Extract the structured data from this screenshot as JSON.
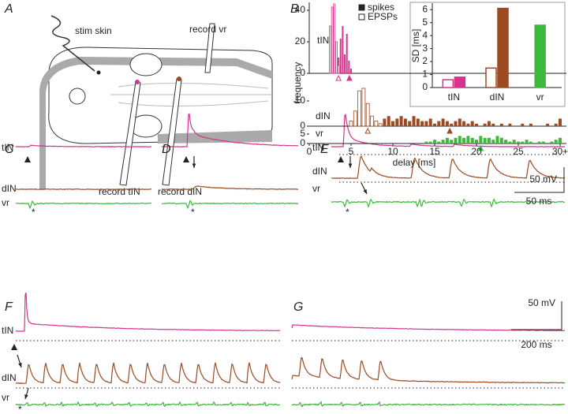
{
  "panels": {
    "letters": [
      "A",
      "B",
      "C",
      "D",
      "E",
      "F",
      "G"
    ],
    "diagram": {
      "stim_skin": "stim skin",
      "record_vr": "record vr",
      "record_tIN": "record tIN",
      "record_dIN": "record dIN"
    },
    "traces": {
      "tIN": "tIN",
      "dIN": "dIN",
      "vr": "vr",
      "star": "*"
    },
    "scale_bars": {
      "E_voltage": "50 mV",
      "E_time": "50 ms",
      "G_voltage": "50 mV",
      "G_time": "200 ms"
    }
  },
  "chart_data": [
    {
      "type": "bar",
      "label": "tIN",
      "color": "#d6338a",
      "x": [
        2.5,
        2.75,
        3,
        3.25,
        3.5,
        3.75,
        4,
        4.25,
        4.5,
        4.75,
        5
      ],
      "series": [
        {
          "name": "spikes",
          "filled": true,
          "color": "#d6338a",
          "values": [
            0,
            0,
            0,
            5,
            10,
            22,
            30,
            12,
            25,
            8,
            3
          ]
        },
        {
          "name": "EPSPs",
          "filled": false,
          "color": "#d6338a",
          "values": [
            30,
            42,
            44,
            20,
            5,
            0,
            0,
            0,
            0,
            0,
            0
          ]
        }
      ],
      "means": {
        "spikes": 4.8,
        "EPSPs": 3.5
      },
      "ylim": [
        0,
        45
      ],
      "yticks": [
        0,
        20,
        40
      ],
      "legend": "top-right"
    },
    {
      "type": "bar",
      "label": "dIN",
      "color": "#9b4a22",
      "ylabel": "frequency",
      "x": [
        5,
        5.5,
        6,
        6.5,
        7,
        7.5,
        8,
        8.5,
        9,
        9.5,
        10,
        10.5,
        11,
        11.5,
        12,
        12.5,
        13,
        13.5,
        14,
        14.5,
        15,
        15.5,
        16,
        16.5,
        17,
        17.5,
        18,
        18.5,
        19,
        19.5,
        20,
        20.5,
        21,
        21.5,
        22,
        22.5,
        23,
        23.5,
        24,
        24.5,
        25,
        25.5,
        26,
        26.5,
        27,
        27.5,
        28,
        28.5,
        29,
        29.5,
        30
      ],
      "series": [
        {
          "name": "spikes",
          "filled": true,
          "color": "#9b4a22",
          "values": [
            0,
            0,
            0,
            0,
            1,
            0,
            2,
            1,
            3,
            4,
            2,
            3,
            4,
            3,
            2,
            4,
            3,
            2,
            2,
            3,
            1,
            2,
            3,
            2,
            1,
            2,
            3,
            2,
            1,
            2,
            1,
            0,
            1,
            2,
            1,
            0,
            1,
            0,
            1,
            0,
            0,
            1,
            0,
            1,
            0,
            0,
            0,
            1,
            0,
            1,
            3
          ]
        },
        {
          "name": "EPSPs",
          "filled": false,
          "color": "#9b4a22",
          "values": [
            2,
            6,
            14,
            15,
            9,
            4,
            2,
            1,
            0,
            0,
            0,
            0,
            0,
            0,
            0,
            0,
            0,
            0,
            0,
            0,
            0,
            0,
            0,
            0,
            0,
            0,
            0,
            0,
            0,
            0,
            0,
            0,
            0,
            0,
            0,
            0,
            0,
            0,
            0,
            0,
            0,
            0,
            0,
            0,
            0,
            0,
            0,
            0,
            0,
            0,
            0
          ]
        }
      ],
      "means": {
        "spikes": 16.8,
        "EPSPs": 7
      },
      "ylim": [
        0,
        15
      ],
      "yticks": [
        0,
        10
      ]
    },
    {
      "type": "bar",
      "label": "vr",
      "color": "#3cb83c",
      "xlabel": "delay [ms]",
      "x": [
        5,
        5.5,
        6,
        6.5,
        7,
        7.5,
        8,
        8.5,
        9,
        9.5,
        10,
        10.5,
        11,
        11.5,
        12,
        12.5,
        13,
        13.5,
        14,
        14.5,
        15,
        15.5,
        16,
        16.5,
        17,
        17.5,
        18,
        18.5,
        19,
        19.5,
        20,
        20.5,
        21,
        21.5,
        22,
        22.5,
        23,
        23.5,
        24,
        24.5,
        25,
        25.5,
        26,
        26.5,
        27,
        27.5,
        28,
        28.5,
        29,
        29.5,
        30
      ],
      "series": [
        {
          "name": "spikes",
          "filled": true,
          "color": "#3cb83c",
          "values": [
            0,
            0,
            0,
            0,
            0,
            0,
            0,
            0,
            0,
            0,
            0,
            0,
            0,
            0,
            0,
            0,
            0,
            0,
            1,
            1,
            2,
            1,
            2,
            3,
            2,
            3,
            4,
            3,
            4,
            3,
            2,
            4,
            3,
            3,
            2,
            4,
            3,
            2,
            1,
            2,
            1,
            1,
            2,
            1,
            0,
            1,
            1,
            0,
            1,
            2,
            3
          ]
        }
      ],
      "means": {
        "spikes": 20.5
      },
      "ylim": [
        0,
        5
      ],
      "yticks": [
        0,
        5
      ],
      "xlim": [
        0,
        30.5
      ],
      "xticks": [
        0,
        5,
        10,
        15,
        20,
        25,
        {
          "value": 30,
          "label": "30+"
        }
      ]
    },
    {
      "type": "sdbar",
      "ylabel": "SD [ms]",
      "categories": [
        "tIN",
        "dIN",
        "vr"
      ],
      "colors": [
        "#d6338a",
        "#9b4a22",
        "#3cb83c"
      ],
      "series": [
        {
          "name": "EPSPs",
          "filled": false,
          "values": [
            0.6,
            1.5,
            null
          ]
        },
        {
          "name": "spikes",
          "filled": true,
          "values": [
            0.8,
            6.1,
            4.8
          ]
        }
      ],
      "ylim": [
        0,
        6.5
      ],
      "yticks": [
        0,
        1,
        2,
        3,
        4,
        5,
        6
      ]
    }
  ]
}
